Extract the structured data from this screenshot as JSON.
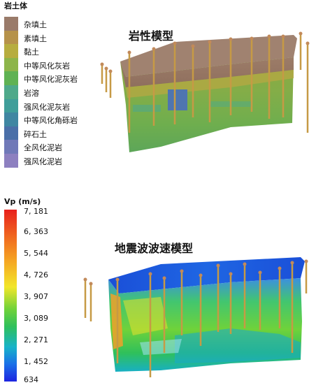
{
  "legend": {
    "title": "岩土体",
    "items": [
      {
        "label": "杂填土",
        "color": "#9a7b6a"
      },
      {
        "label": "素填土",
        "color": "#b6924a"
      },
      {
        "label": "黏土",
        "color": "#b7ad3f"
      },
      {
        "label": "中等风化灰岩",
        "color": "#8db54a"
      },
      {
        "label": "中等风化泥灰岩",
        "color": "#5fb253"
      },
      {
        "label": "岩溶",
        "color": "#4ea98a"
      },
      {
        "label": "强风化泥灰岩",
        "color": "#3f9e9a"
      },
      {
        "label": "中等风化角砾岩",
        "color": "#3f86a2"
      },
      {
        "label": "碎石土",
        "color": "#4a6fa8"
      },
      {
        "label": "全风化泥岩",
        "color": "#7079b8"
      },
      {
        "label": "强风化泥岩",
        "color": "#8d80c0"
      }
    ]
  },
  "vp_legend": {
    "title": "Vp (m/s)",
    "ticks": [
      "7, 181",
      "6, 363",
      "5, 544",
      "4, 726",
      "3, 907",
      "3, 089",
      "2, 271",
      "1, 452",
      "634"
    ]
  },
  "models": {
    "lithology_title": "岩性模型",
    "velocity_title": "地震波波速模型"
  }
}
